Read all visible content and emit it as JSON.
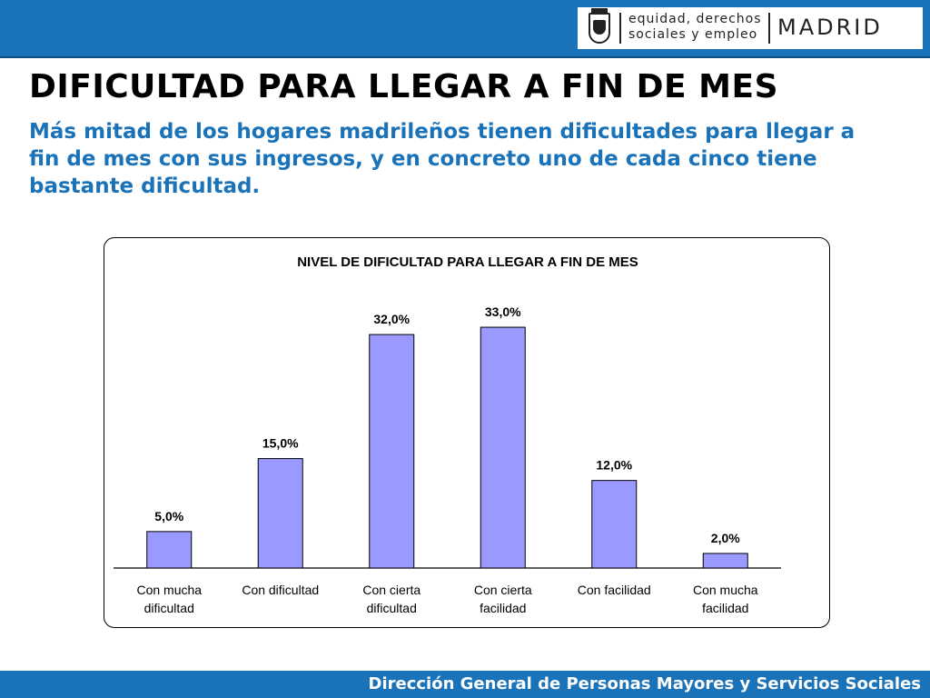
{
  "header": {
    "logo": {
      "department_lines": [
        "equidad, derechos",
        "sociales y empleo"
      ],
      "city": "MADRID",
      "icon": "coat-of-arms-icon"
    }
  },
  "title": "DIFICULTAD PARA LLEGAR A FIN DE MES",
  "subtitle": "Más mitad de los hogares madrileños tienen dificultades para llegar a fin de mes con sus ingresos, y en concreto uno de cada cinco tiene bastante dificultad.",
  "footer": {
    "text": "Dirección General de Personas Mayores y Servicios Sociales"
  },
  "colors": {
    "accent": "#1a72b8",
    "bar_fill": "#9999ff",
    "bar_stroke": "#000000"
  },
  "chart_data": {
    "type": "bar",
    "title": "NIVEL DE DIFICULTAD PARA LLEGAR A FIN DE MES",
    "categories": [
      [
        "Con mucha",
        "dificultad"
      ],
      [
        "Con dificultad"
      ],
      [
        "Con cierta",
        "dificultad"
      ],
      [
        "Con cierta",
        "facilidad"
      ],
      [
        "Con facilidad"
      ],
      [
        "Con mucha",
        "facilidad"
      ]
    ],
    "values": [
      5.0,
      15.0,
      32.0,
      33.0,
      12.0,
      2.0
    ],
    "data_labels": [
      "5,0%",
      "15,0%",
      "32,0%",
      "33,0%",
      "12,0%",
      "2,0%"
    ],
    "xlabel": "",
    "ylabel": "",
    "ylim": [
      0,
      35
    ],
    "grid": false,
    "legend": false
  }
}
